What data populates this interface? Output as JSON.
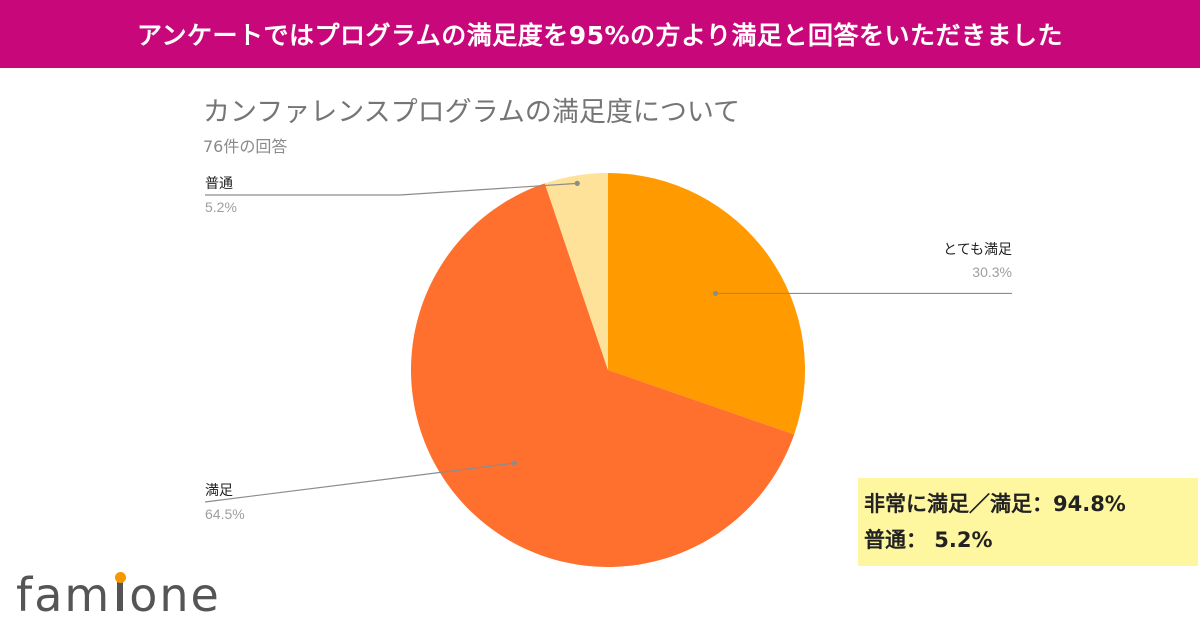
{
  "banner": {
    "text": "アンケートではプログラムの満足度を95%の方より満足と回答をいただきました"
  },
  "chart_data": {
    "type": "pie",
    "title": "カンファレンスプログラムの満足度について",
    "subtitle": "76件の回答",
    "slices": [
      {
        "label": "とても満足",
        "value": 30.3,
        "display": "30.3%",
        "color": "#ff9a00"
      },
      {
        "label": "満足",
        "value": 64.5,
        "display": "64.5%",
        "color": "#ff6f2e"
      },
      {
        "label": "普通",
        "value": 5.2,
        "display": "5.2%",
        "color": "#ffe29a"
      }
    ],
    "start_angle_deg": 0,
    "direction": "clockwise"
  },
  "summary": {
    "line1": "非常に満足／満足：94.8%",
    "line2": "普通： 5.2%"
  },
  "logo": {
    "before": "fam",
    "after": "one",
    "accent": "#f39800"
  }
}
